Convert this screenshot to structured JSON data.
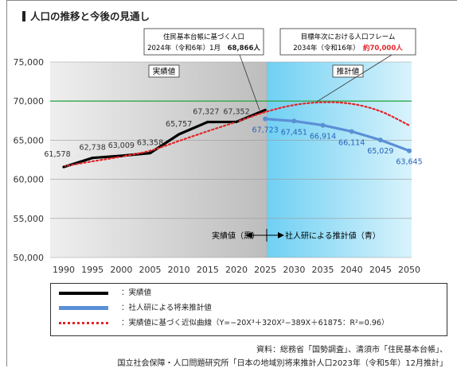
{
  "heading": "人口の推移と今後の見通し",
  "chart_data": {
    "type": "line",
    "ylim": [
      50000,
      75000
    ],
    "yticks": [
      50000,
      55000,
      60000,
      65000,
      70000,
      75000
    ],
    "ytick_labels": [
      "50,000",
      "55,000",
      "60,000",
      "65,000",
      "70,000",
      "75,000"
    ],
    "xlim": [
      1990,
      2050
    ],
    "xticks": [
      1990,
      1995,
      2000,
      2005,
      2010,
      2015,
      2020,
      2025,
      2030,
      2035,
      2040,
      2045,
      2050
    ],
    "region_actual_label": "実績値",
    "region_forecast_label": "推計値",
    "reference_line": {
      "value": 70000,
      "color": "#2ea84a"
    },
    "series": [
      {
        "name": "実績値",
        "color": "#000000",
        "x": [
          1990,
          1995,
          2000,
          2005,
          2010,
          2015,
          2020,
          2025
        ],
        "values": [
          61578,
          62738,
          63009,
          63358,
          65757,
          67327,
          67352,
          68866
        ],
        "labels": [
          "61,578",
          "62,738",
          "63,009",
          "63,358",
          "65,757",
          "67,327",
          "67,352",
          ""
        ]
      },
      {
        "name": "社人研による将来推計値",
        "color": "#5a8fd6",
        "x": [
          2025,
          2030,
          2035,
          2040,
          2045,
          2050
        ],
        "values": [
          67723,
          67451,
          66914,
          66114,
          65029,
          63645
        ],
        "labels": [
          "67,723",
          "67,451",
          "66,914",
          "66,114",
          "65,029",
          "63,645"
        ]
      },
      {
        "name": "実績値に基づく近似曲線（Y=−20X³＋320X²−389X＋61875：R²=0.96）",
        "color": "#e0272a",
        "x": [
          1990,
          1995,
          2000,
          2005,
          2010,
          2015,
          2020,
          2025,
          2030,
          2035,
          2040,
          2045,
          2050
        ],
        "values": [
          61650,
          62300,
          62900,
          63650,
          64900,
          66150,
          67350,
          68600,
          69500,
          69850,
          69650,
          68700,
          66900
        ]
      }
    ],
    "callouts": [
      {
        "line1": "住民基本台帳に基づく人口",
        "line2": "2024年（令和6年）1月",
        "value": "68,866人"
      },
      {
        "line1": "目標年次における人口フレーム",
        "line2": "2034年（令和16年）",
        "value": "約70,000人"
      }
    ],
    "annotation_left": "実績値（黒）",
    "annotation_right": "社人研による推計値（青）"
  },
  "legend": [
    {
      "label": "：実績値",
      "style": "black"
    },
    {
      "label": "：社人研による将来推計値",
      "style": "blue"
    },
    {
      "label": "：実績値に基づく近似曲線（Y=−20X³＋320X²−389X＋61875：R²=0.96）",
      "style": "red-dotted"
    }
  ],
  "source": [
    "資料：総務省「国勢調査」、清須市「住民基本台帳」、",
    "国立社会保障・人口問題研究所「日本の地域別将来推計人口2023年（令和5年）12月推計」"
  ]
}
